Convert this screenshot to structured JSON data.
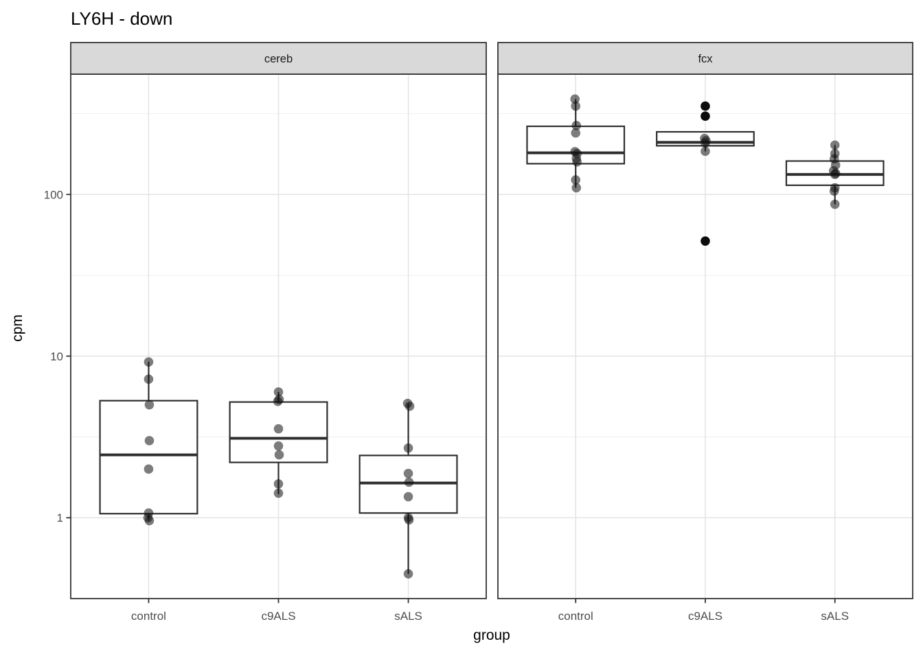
{
  "chart_data": {
    "type": "boxplot",
    "title": "LY6H - down",
    "xlabel": "group",
    "ylabel": "cpm",
    "y_scale": "log10",
    "ylim": [
      0.3162,
      555
    ],
    "grid": true,
    "y_ticks": [
      {
        "value": 100,
        "label": "100"
      },
      {
        "value": 10,
        "label": "10"
      },
      {
        "value": 1,
        "label": "1"
      }
    ],
    "y_minor_ticks": [
      316.2,
      31.62,
      3.162
    ],
    "categories": [
      "control",
      "c9ALS",
      "sALS"
    ],
    "facets": [
      {
        "label": "cereb",
        "groups": [
          {
            "category": "control",
            "box": {
              "q1": 1.06,
              "median": 2.45,
              "q3": 5.3,
              "whisker_low": 0.96,
              "whisker_high": 9.2
            },
            "points": [
              [
                9.2,
                0
              ],
              [
                7.2,
                0
              ],
              [
                5.0,
                1
              ],
              [
                3.0,
                1
              ],
              [
                2.0,
                0
              ],
              [
                1.07,
                0
              ],
              [
                1.0,
                -1
              ],
              [
                0.96,
                1
              ]
            ]
          },
          {
            "category": "c9ALS",
            "box": {
              "q1": 2.2,
              "median": 3.1,
              "q3": 5.2,
              "whisker_low": 1.4,
              "whisker_high": 6.0
            },
            "points": [
              [
                6.0,
                0
              ],
              [
                5.4,
                1
              ],
              [
                5.25,
                -1
              ],
              [
                3.55,
                0
              ],
              [
                2.78,
                0
              ],
              [
                2.45,
                1
              ],
              [
                1.62,
                0
              ],
              [
                1.42,
                0
              ]
            ]
          },
          {
            "category": "sALS",
            "box": {
              "q1": 1.07,
              "median": 1.64,
              "q3": 2.43,
              "whisker_low": 0.45,
              "whisker_high": 5.1
            },
            "points": [
              [
                5.1,
                -1
              ],
              [
                4.9,
                2
              ],
              [
                2.7,
                0
              ],
              [
                1.88,
                0
              ],
              [
                1.66,
                1
              ],
              [
                1.35,
                0
              ],
              [
                1.0,
                0
              ],
              [
                0.97,
                1
              ],
              [
                0.45,
                0
              ]
            ]
          }
        ]
      },
      {
        "label": "fcx",
        "groups": [
          {
            "category": "control",
            "box": {
              "q1": 155,
              "median": 181,
              "q3": 264,
              "whisker_low": 110,
              "whisker_high": 389
            },
            "points": [
              [
                389,
                -1
              ],
              [
                352,
                0
              ],
              [
                267,
                1
              ],
              [
                240,
                0
              ],
              [
                184,
                -1
              ],
              [
                179,
                2
              ],
              [
                167,
                1
              ],
              [
                159,
                2
              ],
              [
                123,
                0
              ],
              [
                110,
                1
              ]
            ]
          },
          {
            "category": "c9ALS",
            "box": {
              "q1": 200,
              "median": 210,
              "q3": 244,
              "whisker_low": 185,
              "whisker_high": 244
            },
            "points": [
              [
                352,
                0
              ],
              [
                305,
                0
              ],
              [
                222,
                -1
              ],
              [
                215,
                1
              ],
              [
                208,
                0
              ],
              [
                185,
                0
              ],
              [
                51.5,
                0
              ]
            ]
          },
          {
            "category": "sALS",
            "box": {
              "q1": 114,
              "median": 133,
              "q3": 161,
              "whisker_low": 87,
              "whisker_high": 202
            },
            "points": [
              [
                202,
                0
              ],
              [
                179,
                0
              ],
              [
                166,
                -1
              ],
              [
                152,
                1
              ],
              [
                140,
                -2
              ],
              [
                135,
                1
              ],
              [
                133,
                0
              ],
              [
                110,
                0
              ],
              [
                105,
                -1
              ],
              [
                87,
                0
              ]
            ]
          }
        ]
      }
    ]
  },
  "colors": {
    "background": "#ffffff",
    "strip_fill": "#d9d9d9",
    "panel_border": "#333333",
    "box_stroke": "#2e2e2e",
    "point_fill": "#111111",
    "outlier_fill": "#000000",
    "grid_major": "#e3e3e3",
    "grid_minor": "#efefef",
    "tick_mark": "#333333",
    "tick_text": "#4d4d4d",
    "strip_text": "#1a1a1a"
  }
}
